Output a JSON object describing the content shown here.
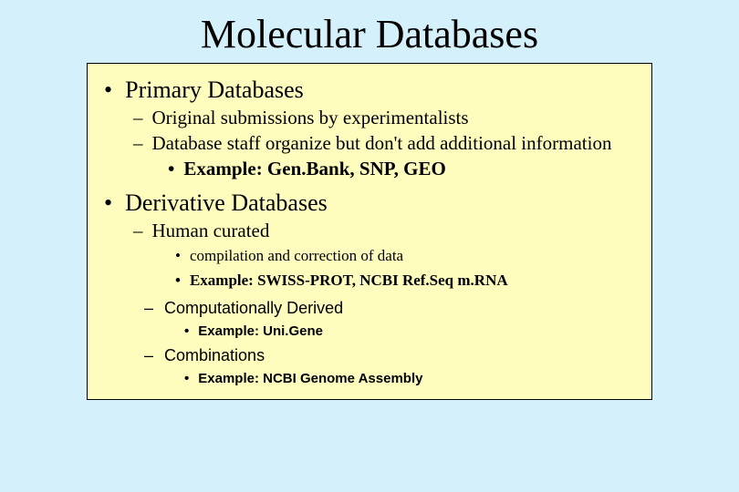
{
  "slide": {
    "background_color": "#d4f0fa",
    "box_background_color": "#fefdbd",
    "box_border_color": "#000000",
    "title": "Molecular Databases",
    "section1": {
      "heading": "Primary Databases",
      "sub1": "Original submissions by experimentalists",
      "sub2": "Database staff organize but don't add additional information",
      "example": "Example: Gen.Bank, SNP, GEO"
    },
    "section2": {
      "heading": "Derivative Databases",
      "sub1": "Human curated",
      "sub1_detail1": "compilation and correction of data",
      "sub1_example": "Example: SWISS-PROT, NCBI Ref.Seq m.RNA",
      "sub2": "Computationally Derived",
      "sub2_example": "Example: Uni.Gene",
      "sub3": "Combinations",
      "sub3_example": "Example: NCBI Genome Assembly"
    }
  }
}
